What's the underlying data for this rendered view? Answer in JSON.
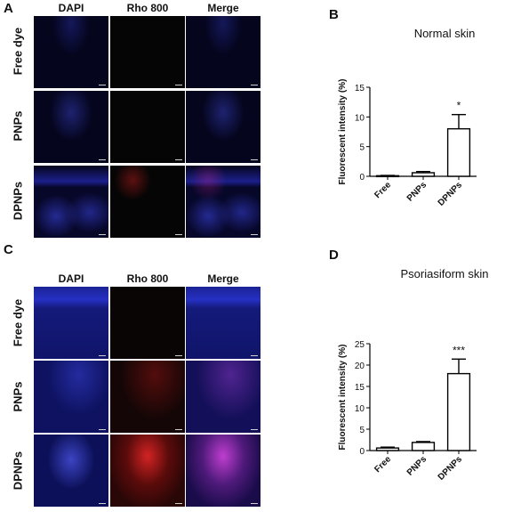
{
  "panels": {
    "A": "A",
    "B": "B",
    "C": "C",
    "D": "D"
  },
  "micrographs": {
    "columns": [
      "DAPI",
      "Rho 800",
      "Merge"
    ],
    "rows": [
      "Free dye",
      "PNPs",
      "DPNPs"
    ]
  },
  "chart_data": [
    {
      "type": "bar",
      "title": "Normal skin",
      "ylabel": "Fluorescent intensity (%)",
      "categories": [
        "Free",
        "PNPs",
        "DPNPs"
      ],
      "values": [
        0.1,
        0.6,
        8.0
      ],
      "errors": [
        0.05,
        0.2,
        2.4
      ],
      "annotations": [
        "",
        "",
        "*"
      ],
      "ylim": [
        0,
        15
      ],
      "yticks": [
        0,
        5,
        10,
        15
      ],
      "grid": false
    },
    {
      "type": "bar",
      "title": "Psoriasiform skin",
      "ylabel": "Fluorescent intensity (%)",
      "categories": [
        "Free",
        "PNPs",
        "DPNPs"
      ],
      "values": [
        0.6,
        1.9,
        18.0
      ],
      "errors": [
        0.2,
        0.2,
        3.4
      ],
      "annotations": [
        "",
        "",
        "***"
      ],
      "ylim": [
        0,
        25
      ],
      "yticks": [
        0,
        5,
        10,
        15,
        20,
        25
      ],
      "grid": false
    }
  ],
  "colors": {
    "nucleus_blue": "#2a33d6",
    "rho_red": "#c81e1e",
    "merge_magenta": "#c23ad6",
    "bar_fill": "#ffffff",
    "bar_stroke": "#000000"
  }
}
